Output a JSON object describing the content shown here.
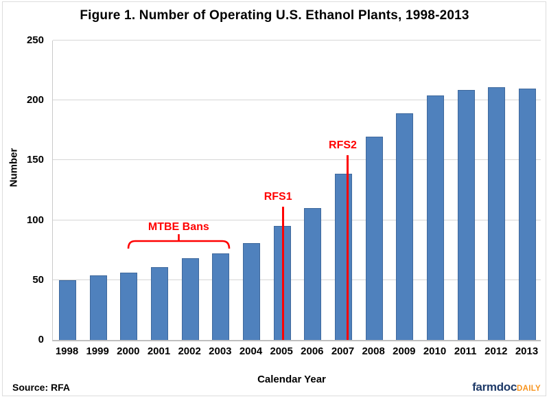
{
  "page": {
    "title": "Figure 1. Number of Operating U.S. Ethanol Plants, 1998-2013",
    "source_note": "Source: RFA",
    "logo": {
      "primary": "farmdoc",
      "secondary": "DAILY"
    }
  },
  "chart_data": {
    "type": "bar",
    "title": "Figure 1. Number of Operating U.S. Ethanol Plants, 1998-2013",
    "xlabel": "Calendar Year",
    "ylabel": "Number",
    "categories": [
      "1998",
      "1999",
      "2000",
      "2001",
      "2002",
      "2003",
      "2004",
      "2005",
      "2006",
      "2007",
      "2008",
      "2009",
      "2010",
      "2011",
      "2012",
      "2013"
    ],
    "values": [
      50,
      54,
      56,
      61,
      68,
      72,
      81,
      95,
      110,
      139,
      170,
      189,
      204,
      209,
      211,
      210
    ],
    "ylim": [
      0,
      250
    ],
    "yticks": [
      0,
      50,
      100,
      150,
      200,
      250
    ],
    "grid": "horizontal",
    "legend": "none",
    "bar_color": "#4F81BD",
    "annotation_color": "#FF0000",
    "annotations": [
      {
        "id": "mtbe",
        "type": "bracket-span",
        "label": "MTBE Bans",
        "from_year": "2000",
        "to_year": "2003"
      },
      {
        "id": "rfs1",
        "type": "vertical-line",
        "label": "RFS1",
        "year": "2005",
        "line_top_value": 111
      },
      {
        "id": "rfs2",
        "type": "vertical-line",
        "label": "RFS2",
        "year": "2007",
        "line_top_value": 154
      }
    ]
  }
}
